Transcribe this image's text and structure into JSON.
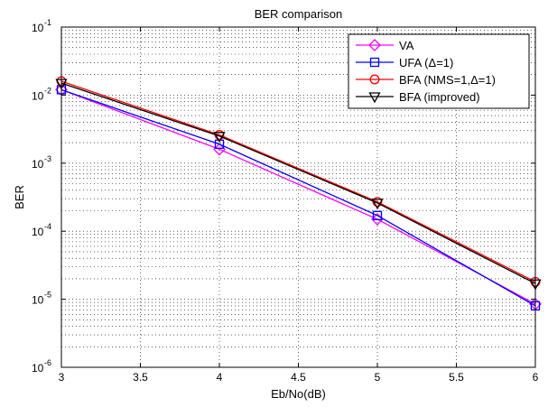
{
  "chart_data": {
    "type": "line",
    "title": "BER comparison",
    "xlabel": "Eb/No(dB)",
    "ylabel": "BER",
    "x": [
      3,
      4,
      5,
      6
    ],
    "xlim": [
      3,
      6
    ],
    "ylim": [
      1e-06,
      0.1
    ],
    "y_scale": "log",
    "x_ticks": [
      3,
      3.5,
      4,
      4.5,
      5,
      5.5,
      6
    ],
    "x_tick_labels": [
      "3",
      "3.5",
      "4",
      "4.5",
      "5",
      "5.5",
      "6"
    ],
    "y_tick_labels": [
      {
        "base": "10",
        "exp": "-6",
        "value": 1e-06
      },
      {
        "base": "10",
        "exp": "-5",
        "value": 1e-05
      },
      {
        "base": "10",
        "exp": "-4",
        "value": 0.0001
      },
      {
        "base": "10",
        "exp": "-3",
        "value": 0.001
      },
      {
        "base": "10",
        "exp": "-2",
        "value": 0.01
      },
      {
        "base": "10",
        "exp": "-1",
        "value": 0.1
      }
    ],
    "grid": true,
    "legend_position": "top-right",
    "series": [
      {
        "name": "VA",
        "color": "#ff00ff",
        "marker": "diamond",
        "values": [
          0.012,
          0.0016,
          0.00015,
          8.5e-06
        ]
      },
      {
        "name": "UFA (Δ=1)",
        "color": "#0000ff",
        "marker": "square",
        "values": [
          0.012,
          0.0019,
          0.00017,
          8e-06
        ]
      },
      {
        "name": "BFA (NMS=1,Δ=1)",
        "color": "#ff0000",
        "marker": "circle",
        "values": [
          0.016,
          0.0026,
          0.00027,
          1.8e-05
        ]
      },
      {
        "name": "BFA (improved)",
        "color": "#000000",
        "marker": "triangle-down",
        "values": [
          0.015,
          0.0025,
          0.00026,
          1.7e-05
        ]
      }
    ]
  }
}
